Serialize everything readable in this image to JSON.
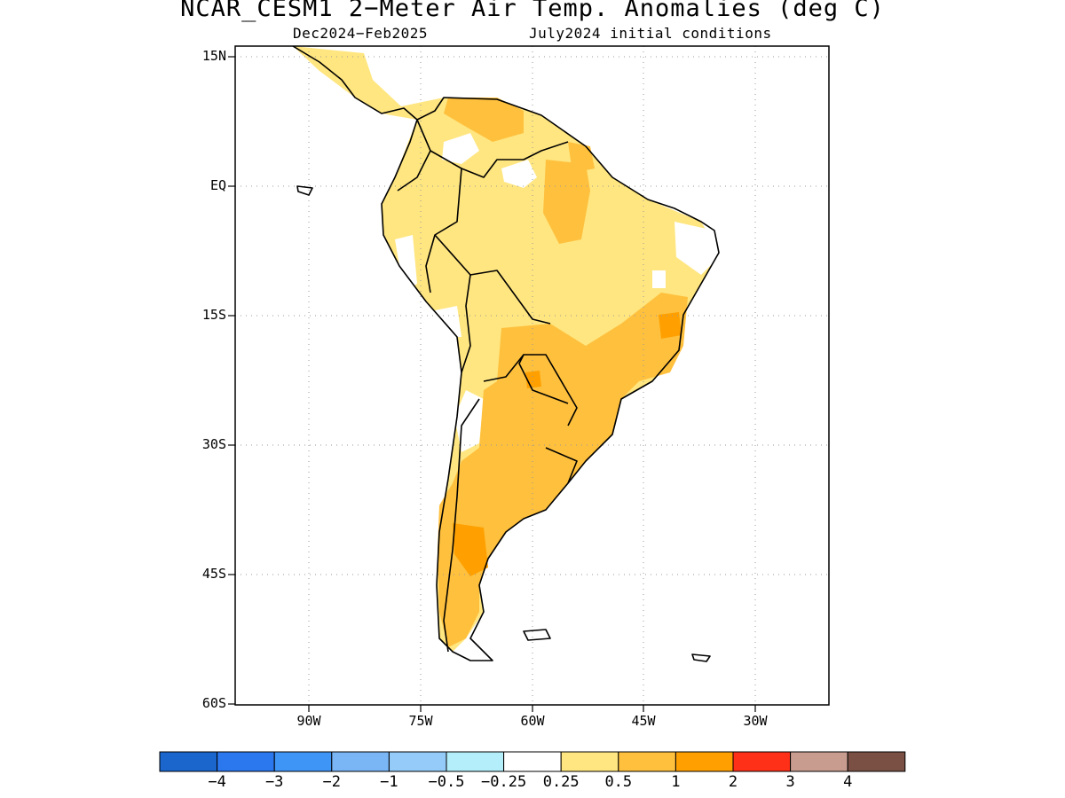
{
  "title": "NCAR_CESM1 2−Meter Air Temp. Anomalies (deg C)",
  "subtitle_left": "Dec2024−Feb2025",
  "subtitle_right": "July2024 initial conditions",
  "map": {
    "region": "South America",
    "lon_range": [
      -103,
      -23
    ],
    "lat_range": [
      -60,
      15
    ],
    "grid": "dotted",
    "lat_labels": [
      "15N",
      "EQ",
      "15S",
      "30S",
      "45S",
      "60S"
    ],
    "lon_labels": [
      "90W",
      "75W",
      "60W",
      "45W",
      "30W"
    ]
  },
  "colorbar": {
    "colors": [
      "#1a66cc",
      "#2a77ee",
      "#3f95f5",
      "#7ab6f6",
      "#94cbf8",
      "#b4eefa",
      "#ffffff",
      "#ffe680",
      "#ffc03d",
      "#ffa000",
      "#ff3018",
      "#c89d8f",
      "#7a5044"
    ],
    "labels": [
      "−4",
      "−3",
      "−2",
      "−1",
      "−0.5",
      "−0.25",
      "0.25",
      "0.5",
      "1",
      "2",
      "3",
      "4"
    ]
  },
  "legend_colors": {
    "weak_warm": "#ffe680",
    "moderate_warm": "#ffc03d",
    "strong_warm": "#ffa000"
  }
}
